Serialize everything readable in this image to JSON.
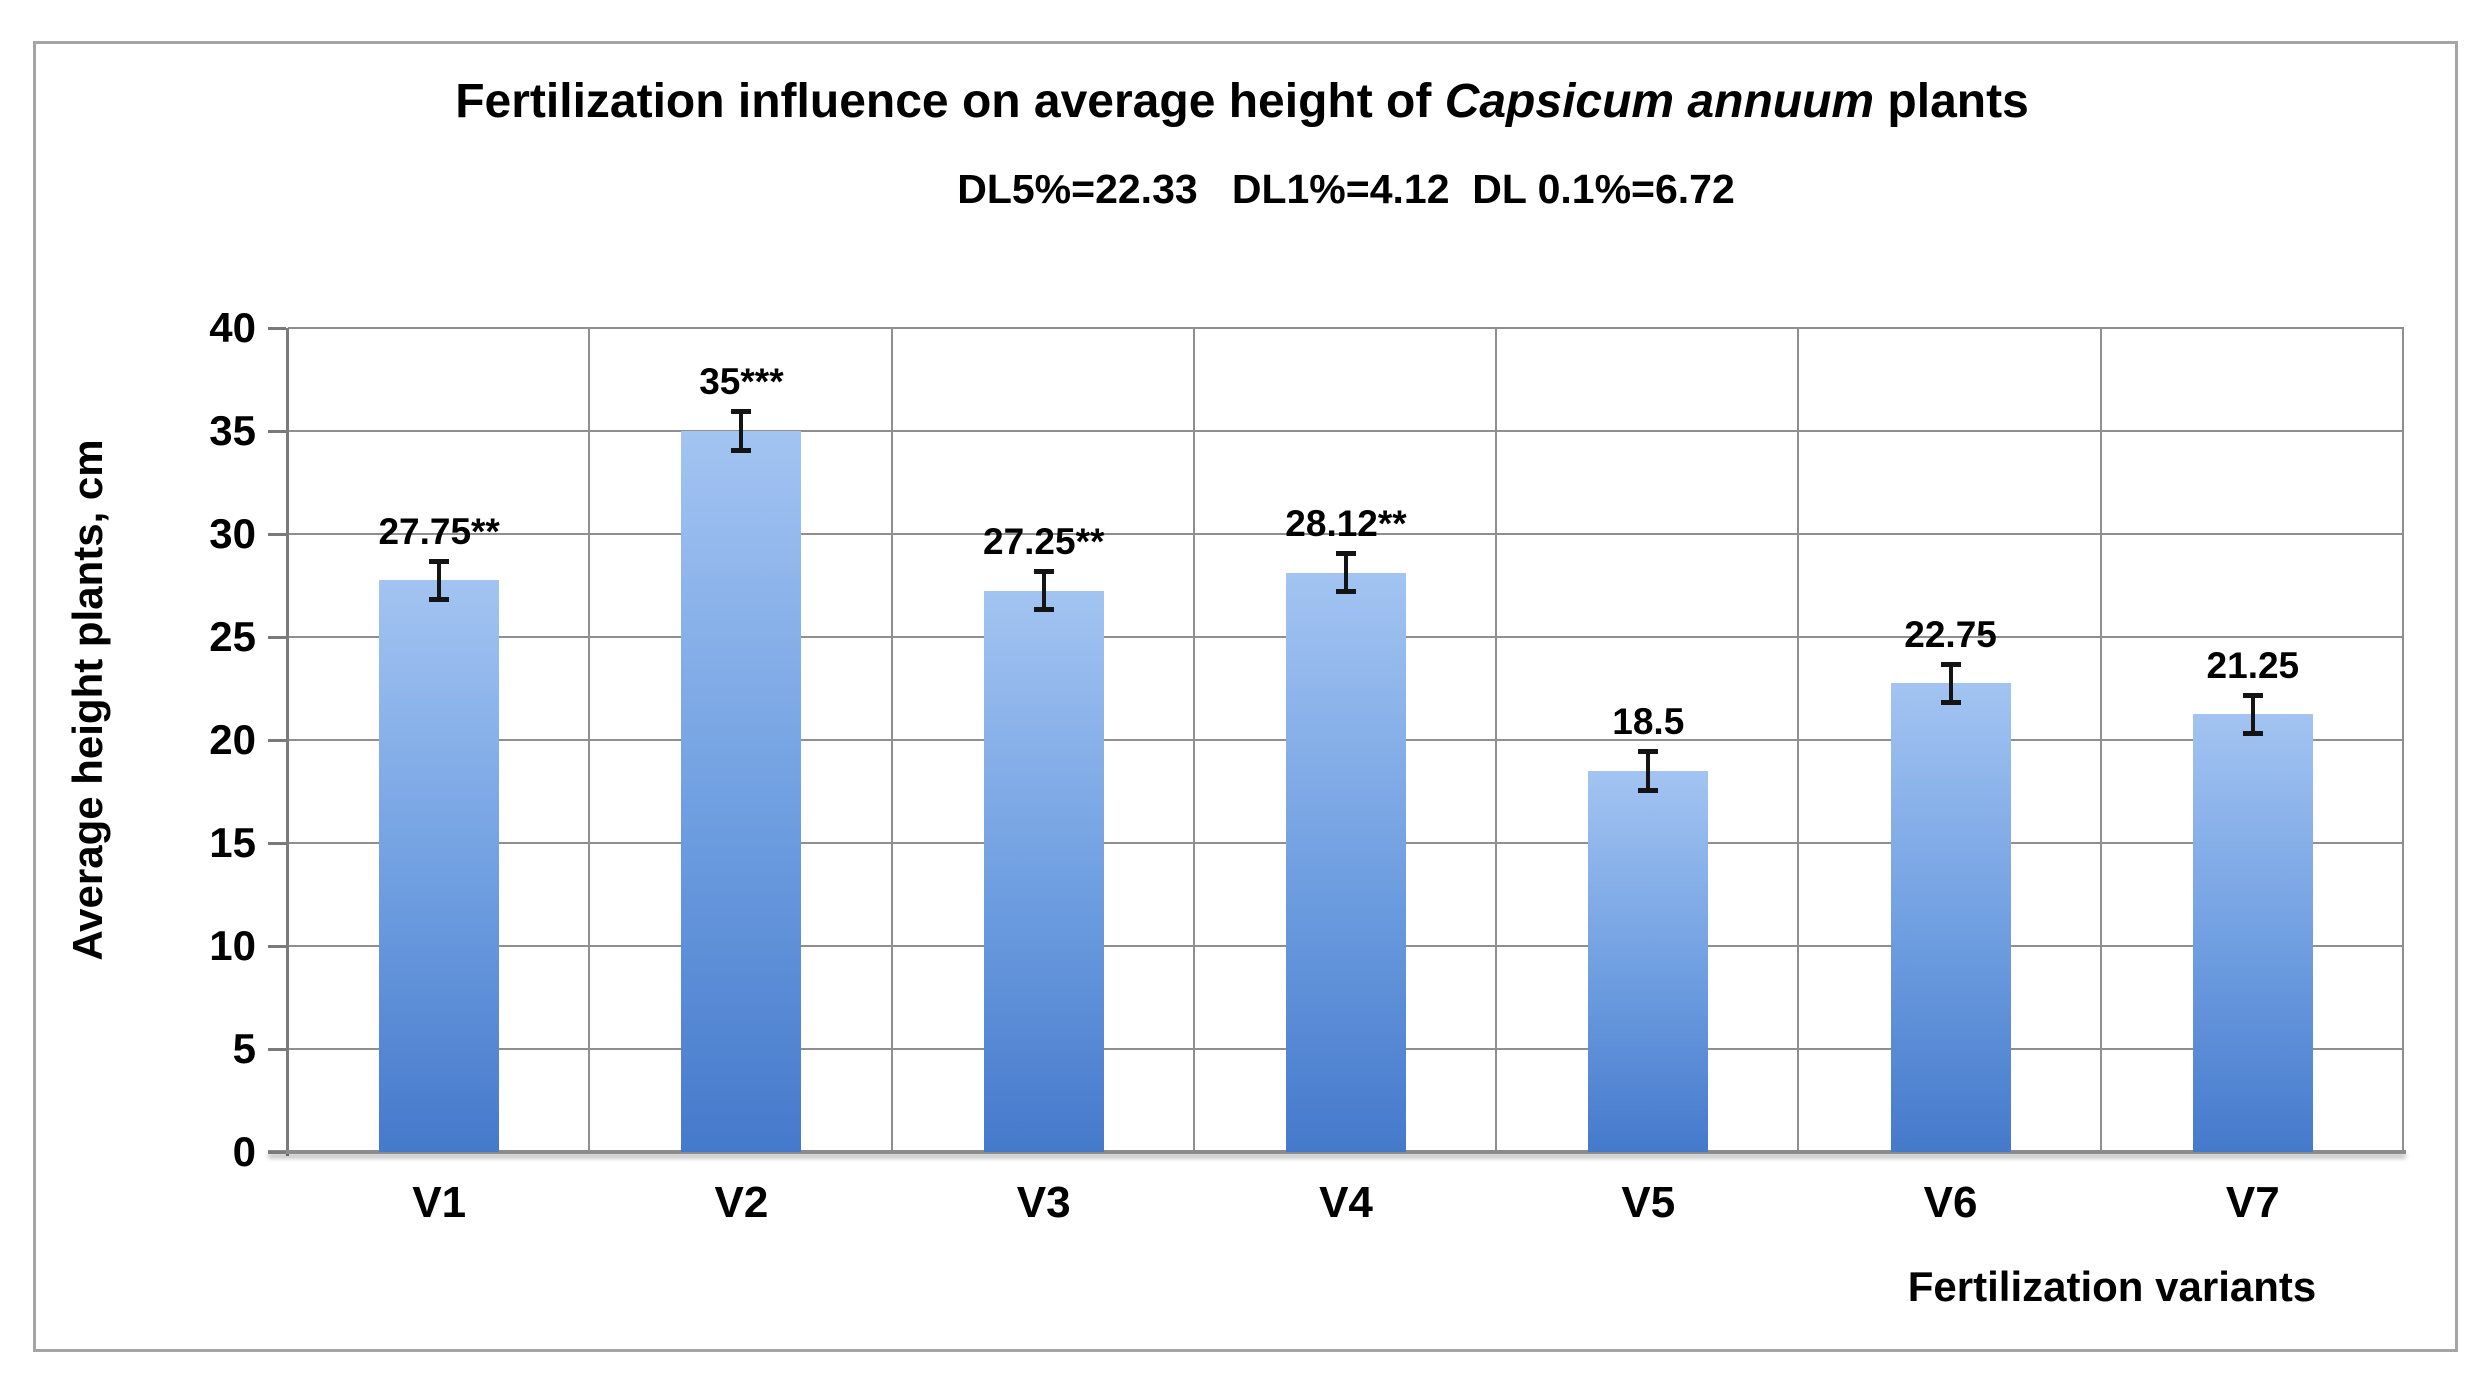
{
  "header": {
    "title_prefix": "Fertilization influence on average height of ",
    "title_species": "Capsicum annuum",
    "title_suffix": " plants",
    "subtitle": "DL5%=22.33   DL1%=4.12  DL 0.1%=6.72"
  },
  "chart_data": {
    "type": "bar",
    "title": "Fertilization influence on average height of Capsicum annuum plants",
    "subtitle": "DL5%=22.33   DL1%=4.12  DL 0.1%=6.72",
    "xlabel": "Fertilization variants",
    "ylabel": "Average height plants, cm",
    "categories": [
      "V1",
      "V2",
      "V3",
      "V4",
      "V5",
      "V6",
      "V7"
    ],
    "values": [
      27.75,
      35,
      27.25,
      28.12,
      18.5,
      22.75,
      21.25
    ],
    "data_labels": [
      "27.75**",
      "35***",
      "27.25**",
      "28.12**",
      "18.5",
      "22.75",
      "21.25"
    ],
    "error_bar": 1.05,
    "ylim": [
      0,
      40
    ],
    "yticks": [
      0,
      5,
      10,
      15,
      20,
      25,
      30,
      35,
      40
    ],
    "grid": true,
    "legend": "none",
    "colors": {
      "bar_top": "#a3c4f2",
      "bar_mid": "#6d9de0",
      "bar_bottom": "#4579cb",
      "gridline": "#8f8f8f",
      "axis": "#7a7a7a",
      "text": "#000000",
      "frame_border": "#a5a5a5",
      "background": "#ffffff"
    }
  }
}
